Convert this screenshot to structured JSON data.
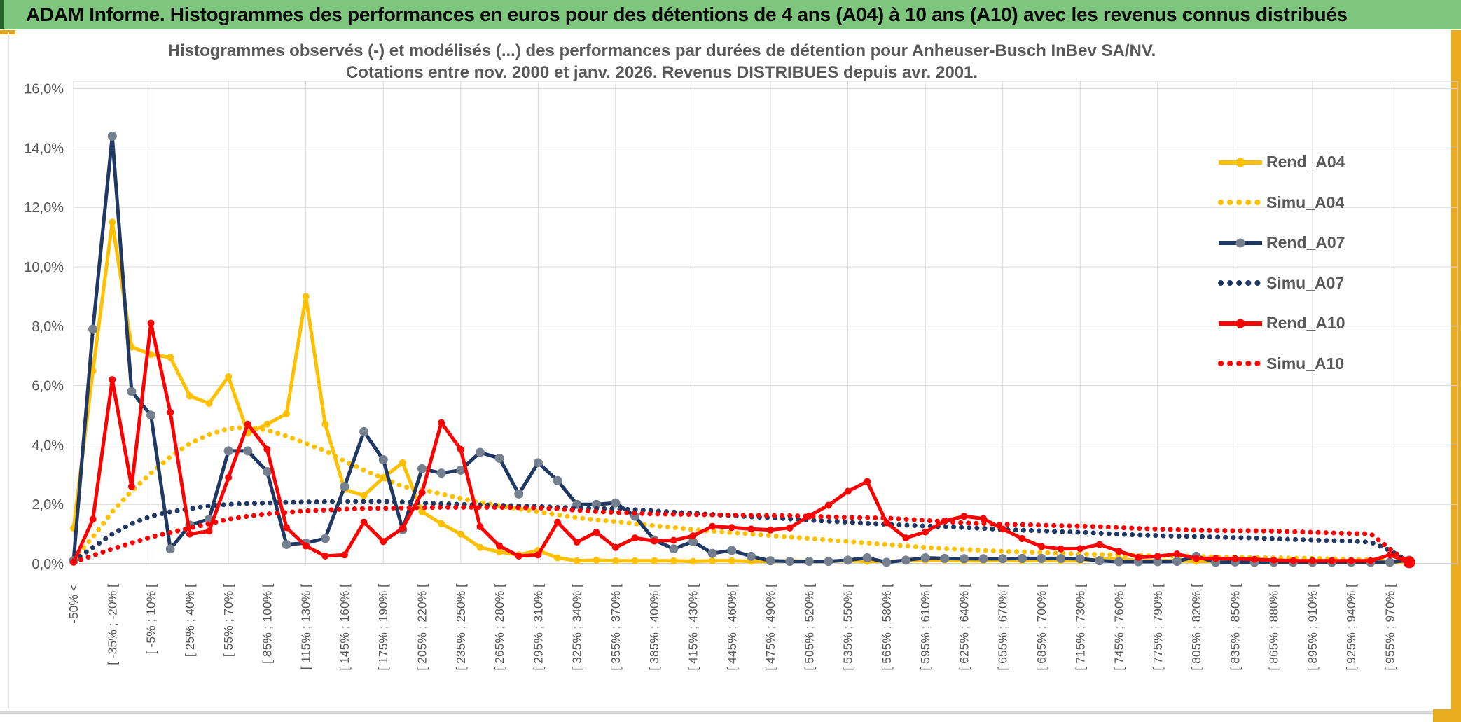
{
  "title_bar": {
    "title": "ADAM Informe. Histogrammes des performances en euros pour des détentions de 4 ans (A04) à 10 ans (A10) avec les revenus connus distribués"
  },
  "chart": {
    "title_line1": "Histogrammes observés (-) et modélisés (...) des performances par durées de détention pour Anheuser-Busch InBev SA/NV.",
    "title_line2": "Cotations entre nov. 2000 et janv. 2026. Revenus DISTRIBUES depuis avr. 2001."
  },
  "chart_data": {
    "type": "line",
    "n_points": 70,
    "x_tick_every": 2,
    "x_tick_labels": [
      "-50% <",
      "[ -35% ; -20% [",
      "[ -5% ; 10% [",
      "[ 25% ; 40% [",
      "[ 55% ; 70% [",
      "[ 85% ; 100% [",
      "[ 115% ; 130% [",
      "[ 145% ; 160% [",
      "[ 175% ; 190% [",
      "[ 205% ; 220% [",
      "[ 235% ; 250% [",
      "[ 265% ; 280% [",
      "[ 295% ; 310% [",
      "[ 325% ; 340% [",
      "[ 355% ; 370% [",
      "[ 385% ; 400% [",
      "[ 415% ; 430% [",
      "[ 445% ; 460% [",
      "[ 475% ; 490% [",
      "[ 505% ; 520% [",
      "[ 535% ; 550% [",
      "[ 565% ; 580% [",
      "[ 595% ; 610% [",
      "[ 625% ; 640% [",
      "[ 655% ; 670% [",
      "[ 685% ; 700% [",
      "[ 715% ; 730% [",
      "[ 745% ; 760% [",
      "[ 775% ; 790% [",
      "[ 805% ; 820% [",
      "[ 835% ; 850% [",
      "[ 865% ; 880% [",
      "[ 895% ; 910% [",
      "[ 925% ; 940% [",
      "[ 955% ; 970% ["
    ],
    "y_axis": {
      "min": 0,
      "max": 16,
      "step": 2,
      "unit": "%",
      "tick_labels": [
        "16,0%",
        "14,0%",
        "12,0%",
        "10,0%",
        "8,0%",
        "6,0%",
        "4,0%",
        "2,0%",
        "0,0%"
      ]
    },
    "grid": true,
    "legend_position": "right",
    "series": [
      {
        "name": "Rend_A04",
        "style": "solid",
        "color": "#FFC000",
        "marker_color": "#FFC000",
        "values": [
          1.2,
          6.5,
          11.5,
          7.3,
          7.05,
          6.95,
          5.65,
          5.4,
          6.3,
          4.4,
          4.7,
          5.05,
          9.0,
          4.7,
          2.5,
          2.3,
          2.9,
          3.4,
          1.75,
          1.35,
          1.0,
          0.55,
          0.4,
          0.3,
          0.45,
          0.2,
          0.1,
          0.12,
          0.1,
          0.1,
          0.1,
          0.1,
          0.08,
          0.1,
          0.1,
          0.08,
          0.08,
          0.1,
          0.08,
          0.08,
          0.1,
          0.08,
          0.08,
          0.1,
          0.12,
          0.12,
          0.1,
          0.1,
          0.12,
          0.1,
          0.12,
          0.1,
          0.1,
          0.15,
          0.17,
          0.1,
          0.1,
          0.1,
          0.08,
          0.08,
          0.08,
          0.08,
          0.05,
          0.05,
          0.05,
          0.05,
          0.05,
          0.05,
          0.05,
          0.05
        ]
      },
      {
        "name": "Simu_A04",
        "style": "dotted",
        "color": "#FFC000",
        "marker_color": "#FFC000",
        "values": [
          0.15,
          0.9,
          1.75,
          2.45,
          3.05,
          3.6,
          4.05,
          4.35,
          4.55,
          4.6,
          4.5,
          4.3,
          4.05,
          3.8,
          3.45,
          3.15,
          2.88,
          2.6,
          2.5,
          2.35,
          2.2,
          2.07,
          1.95,
          1.85,
          1.75,
          1.65,
          1.55,
          1.48,
          1.42,
          1.35,
          1.28,
          1.22,
          1.15,
          1.1,
          1.05,
          1.0,
          0.95,
          0.9,
          0.85,
          0.8,
          0.75,
          0.7,
          0.65,
          0.6,
          0.55,
          0.51,
          0.48,
          0.45,
          0.42,
          0.4,
          0.38,
          0.35,
          0.33,
          0.31,
          0.3,
          0.28,
          0.27,
          0.26,
          0.25,
          0.23,
          0.22,
          0.21,
          0.2,
          0.19,
          0.18,
          0.16,
          0.15,
          0.13,
          0.12,
          0.05
        ]
      },
      {
        "name": "Rend_A07",
        "style": "solid",
        "color": "#1F3864",
        "marker_color": "#75808F",
        "values": [
          0.1,
          7.9,
          14.4,
          5.8,
          5.0,
          0.5,
          1.3,
          1.5,
          3.8,
          3.8,
          3.1,
          0.65,
          0.7,
          0.85,
          2.6,
          4.45,
          3.5,
          1.15,
          3.2,
          3.05,
          3.15,
          3.75,
          3.55,
          2.35,
          3.4,
          2.8,
          2.0,
          2.0,
          2.05,
          1.6,
          0.8,
          0.5,
          0.75,
          0.35,
          0.45,
          0.25,
          0.1,
          0.08,
          0.08,
          0.08,
          0.12,
          0.2,
          0.05,
          0.12,
          0.2,
          0.18,
          0.17,
          0.17,
          0.17,
          0.18,
          0.18,
          0.18,
          0.17,
          0.1,
          0.07,
          0.07,
          0.07,
          0.08,
          0.25,
          0.05,
          0.06,
          0.05,
          0.05,
          0.05,
          0.05,
          0.05,
          0.05,
          0.05,
          0.05,
          0.12
        ]
      },
      {
        "name": "Simu_A07",
        "style": "dotted",
        "color": "#1F3864",
        "marker_color": "#1F3864",
        "values": [
          0.1,
          0.55,
          1.0,
          1.35,
          1.6,
          1.75,
          1.85,
          1.95,
          2.0,
          2.03,
          2.05,
          2.07,
          2.08,
          2.09,
          2.1,
          2.1,
          2.1,
          2.08,
          2.05,
          2.02,
          2.0,
          1.98,
          1.97,
          1.95,
          1.93,
          1.9,
          1.88,
          1.86,
          1.85,
          1.82,
          1.78,
          1.74,
          1.7,
          1.66,
          1.62,
          1.58,
          1.55,
          1.51,
          1.47,
          1.43,
          1.4,
          1.36,
          1.33,
          1.3,
          1.27,
          1.25,
          1.22,
          1.19,
          1.15,
          1.13,
          1.11,
          1.08,
          1.06,
          1.03,
          1.0,
          0.97,
          0.95,
          0.93,
          0.92,
          0.9,
          0.88,
          0.87,
          0.84,
          0.82,
          0.8,
          0.78,
          0.76,
          0.73,
          0.45,
          0.05
        ]
      },
      {
        "name": "Rend_A10",
        "style": "solid",
        "color": "#FF0000",
        "marker_color": "#FF0000",
        "values": [
          0.05,
          1.5,
          6.2,
          2.6,
          8.1,
          5.1,
          1.0,
          1.1,
          2.9,
          4.7,
          3.85,
          1.22,
          0.6,
          0.26,
          0.3,
          1.4,
          0.75,
          1.2,
          2.4,
          4.75,
          3.85,
          1.25,
          0.6,
          0.26,
          0.3,
          1.4,
          0.73,
          1.06,
          0.55,
          0.87,
          0.77,
          0.79,
          0.94,
          1.26,
          1.22,
          1.17,
          1.14,
          1.21,
          1.61,
          1.97,
          2.44,
          2.77,
          1.38,
          0.87,
          1.07,
          1.44,
          1.6,
          1.52,
          1.17,
          0.85,
          0.58,
          0.5,
          0.51,
          0.65,
          0.42,
          0.22,
          0.25,
          0.33,
          0.18,
          0.18,
          0.17,
          0.15,
          0.12,
          0.1,
          0.1,
          0.1,
          0.1,
          0.1,
          0.3,
          0.05
        ]
      },
      {
        "name": "Simu_A10",
        "style": "dotted",
        "color": "#FF0000",
        "marker_color": "#FF0000",
        "values": [
          0.05,
          0.28,
          0.5,
          0.7,
          0.9,
          1.05,
          1.2,
          1.35,
          1.5,
          1.6,
          1.68,
          1.73,
          1.78,
          1.81,
          1.84,
          1.86,
          1.87,
          1.88,
          1.89,
          1.9,
          1.9,
          1.9,
          1.9,
          1.89,
          1.88,
          1.85,
          1.8,
          1.76,
          1.73,
          1.7,
          1.68,
          1.67,
          1.66,
          1.65,
          1.64,
          1.63,
          1.62,
          1.62,
          1.6,
          1.58,
          1.56,
          1.55,
          1.54,
          1.5,
          1.46,
          1.42,
          1.38,
          1.35,
          1.33,
          1.32,
          1.3,
          1.28,
          1.27,
          1.25,
          1.22,
          1.19,
          1.17,
          1.15,
          1.13,
          1.12,
          1.11,
          1.11,
          1.1,
          1.08,
          1.06,
          1.04,
          1.02,
          1.01,
          0.5,
          0.02
        ]
      }
    ]
  }
}
